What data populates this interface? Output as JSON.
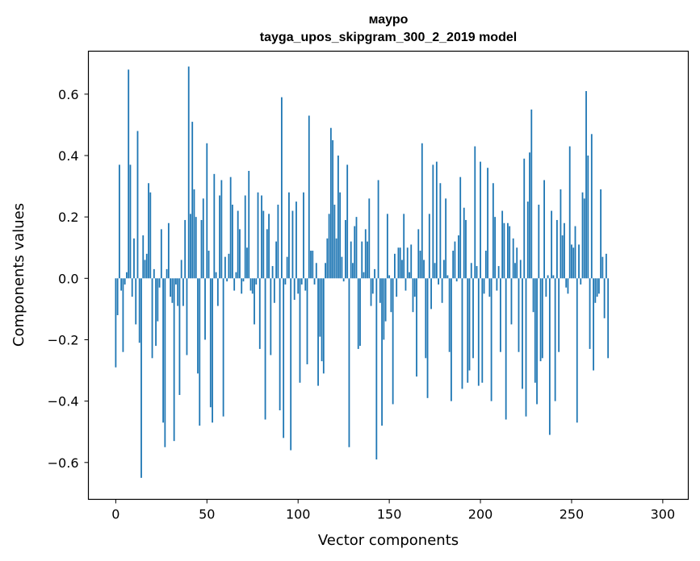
{
  "chart_data": {
    "type": "bar",
    "title": "маурo",
    "subtitle": "tayga_upos_skipgram_300_2_2019 model",
    "xlabel": "Vector components",
    "ylabel": "Components values",
    "xlim": [
      -15,
      314
    ],
    "ylim": [
      -0.72,
      0.74
    ],
    "xticks": [
      0,
      50,
      100,
      150,
      200,
      250,
      300
    ],
    "yticks": [
      -0.6,
      -0.4,
      -0.2,
      0.0,
      0.2,
      0.4,
      0.6
    ],
    "xtick_labels": [
      "0",
      "50",
      "100",
      "150",
      "200",
      "250",
      "300"
    ],
    "ytick_labels": [
      "−0.6",
      "−0.4",
      "−0.2",
      "0.0",
      "0.2",
      "0.4",
      "0.6"
    ],
    "bar_color": "#1f77b4",
    "values": [
      -0.29,
      -0.12,
      0.37,
      -0.04,
      -0.24,
      -0.02,
      0.02,
      0.68,
      0.37,
      -0.06,
      0.13,
      -0.15,
      0.48,
      -0.21,
      -0.65,
      0.14,
      0.06,
      0.08,
      0.31,
      0.28,
      -0.26,
      0.03,
      -0.22,
      -0.14,
      -0.03,
      0.16,
      -0.47,
      -0.55,
      0.03,
      0.18,
      -0.06,
      -0.08,
      -0.53,
      -0.02,
      -0.09,
      -0.38,
      0.06,
      -0.09,
      0.19,
      -0.25,
      0.69,
      0.21,
      0.51,
      0.29,
      0.2,
      -0.31,
      -0.48,
      0.19,
      0.26,
      -0.2,
      0.44,
      0.09,
      -0.42,
      -0.47,
      0.34,
      0.02,
      -0.09,
      0.27,
      0.32,
      -0.45,
      0.07,
      -0.01,
      0.08,
      0.33,
      0.24,
      -0.04,
      0.02,
      0.22,
      0.16,
      -0.05,
      -0.01,
      0.27,
      0.1,
      0.35,
      -0.04,
      -0.05,
      -0.15,
      -0.02,
      0.28,
      -0.23,
      0.27,
      0.22,
      -0.46,
      0.16,
      0.21,
      -0.25,
      0.04,
      -0.08,
      0.12,
      0.24,
      -0.43,
      0.59,
      -0.52,
      -0.02,
      0.07,
      0.28,
      -0.56,
      0.22,
      -0.07,
      0.25,
      -0.05,
      -0.34,
      -0.02,
      0.28,
      -0.04,
      -0.28,
      0.53,
      0.09,
      0.09,
      -0.02,
      0.05,
      -0.35,
      -0.19,
      -0.27,
      -0.31,
      0.05,
      0.13,
      0.21,
      0.49,
      0.45,
      0.24,
      0.13,
      0.4,
      0.28,
      0.07,
      -0.01,
      0.19,
      0.37,
      -0.55,
      0.12,
      0.05,
      0.17,
      0.2,
      -0.23,
      -0.22,
      0.12,
      0.02,
      0.16,
      0.12,
      0.26,
      -0.09,
      -0.05,
      0.03,
      -0.59,
      0.32,
      -0.08,
      -0.48,
      -0.2,
      -0.14,
      0.21,
      0.01,
      -0.11,
      -0.41,
      0.08,
      -0.06,
      0.1,
      0.1,
      0.06,
      0.21,
      -0.04,
      0.1,
      0.02,
      0.11,
      -0.11,
      -0.06,
      -0.32,
      0.16,
      0.09,
      0.44,
      0.06,
      -0.26,
      -0.39,
      0.21,
      -0.1,
      0.37,
      0.05,
      0.38,
      -0.02,
      0.31,
      -0.08,
      0.06,
      0.26,
      0.01,
      -0.24,
      -0.4,
      0.09,
      0.12,
      -0.01,
      0.14,
      0.33,
      -0.36,
      0.23,
      0.19,
      -0.34,
      -0.3,
      0.05,
      -0.26,
      0.43,
      0.04,
      -0.35,
      0.38,
      -0.34,
      -0.05,
      0.09,
      0.36,
      -0.06,
      -0.4,
      0.31,
      0.2,
      -0.04,
      0.04,
      -0.24,
      0.22,
      0.18,
      -0.46,
      0.18,
      0.17,
      -0.15,
      0.13,
      0.05,
      0.1,
      -0.24,
      0.06,
      -0.36,
      0.39,
      -0.45,
      0.25,
      0.41,
      0.55,
      -0.11,
      -0.34,
      -0.41,
      0.24,
      -0.27,
      -0.26,
      0.32,
      -0.06,
      0.01,
      -0.51,
      0.22,
      0.01,
      -0.4,
      0.19,
      -0.24,
      0.29,
      0.14,
      0.18,
      -0.03,
      -0.05,
      0.43,
      0.11,
      0.1,
      0.17,
      -0.47,
      0.11,
      -0.02,
      0.28,
      0.26,
      0.61,
      0.4,
      -0.23,
      0.47,
      -0.3,
      -0.08,
      -0.06,
      -0.05,
      0.29,
      0.07,
      -0.13,
      0.08,
      -0.26
    ]
  }
}
